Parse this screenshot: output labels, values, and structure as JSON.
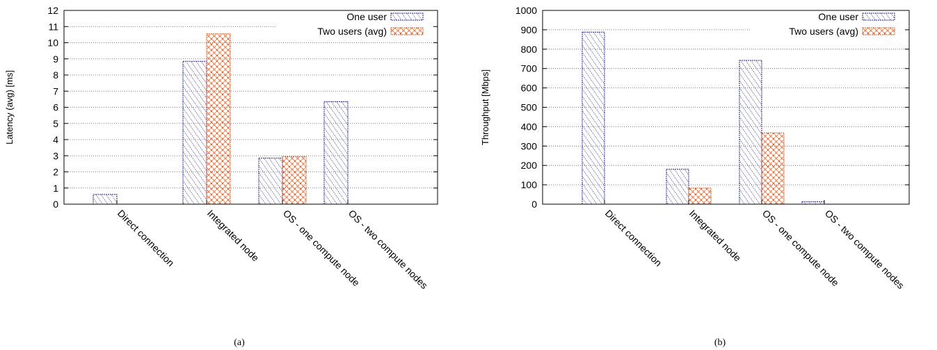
{
  "chart_data": [
    {
      "type": "bar",
      "caption": "(a)",
      "ylabel": "Latency (avg) [ms]",
      "xlabel": "",
      "ylim": [
        0,
        12
      ],
      "yticks": [
        "0",
        "1",
        "2",
        "3",
        "4",
        "5",
        "6",
        "7",
        "8",
        "9",
        "10",
        "11",
        "12"
      ],
      "categories": [
        "Direct connection",
        "Integrated node",
        "OS - one compute node",
        "OS - two compute nodes"
      ],
      "series": [
        {
          "name": "One user",
          "values": [
            0.6,
            8.85,
            2.85,
            6.35
          ],
          "color": "#1a1aa6"
        },
        {
          "name": "Two users (avg)",
          "values": [
            0,
            10.55,
            2.95,
            0
          ],
          "color": "#e0561a"
        }
      ],
      "legend": "top-right",
      "grid": true
    },
    {
      "type": "bar",
      "caption": "(b)",
      "ylabel": "Throughput [Mbps]",
      "xlabel": "",
      "ylim": [
        0,
        1000
      ],
      "yticks": [
        "0",
        "100",
        "200",
        "300",
        "400",
        "500",
        "600",
        "700",
        "800",
        "900",
        "1000"
      ],
      "categories": [
        "Direct connection",
        "Integrated node",
        "OS - one compute node",
        "OS - two compute nodes"
      ],
      "series": [
        {
          "name": "One user",
          "values": [
            888,
            180,
            742,
            12
          ],
          "color": "#1a1aa6"
        },
        {
          "name": "Two users (avg)",
          "values": [
            0,
            83,
            368,
            0
          ],
          "color": "#e0561a"
        }
      ],
      "legend": "top-right",
      "grid": true
    }
  ]
}
